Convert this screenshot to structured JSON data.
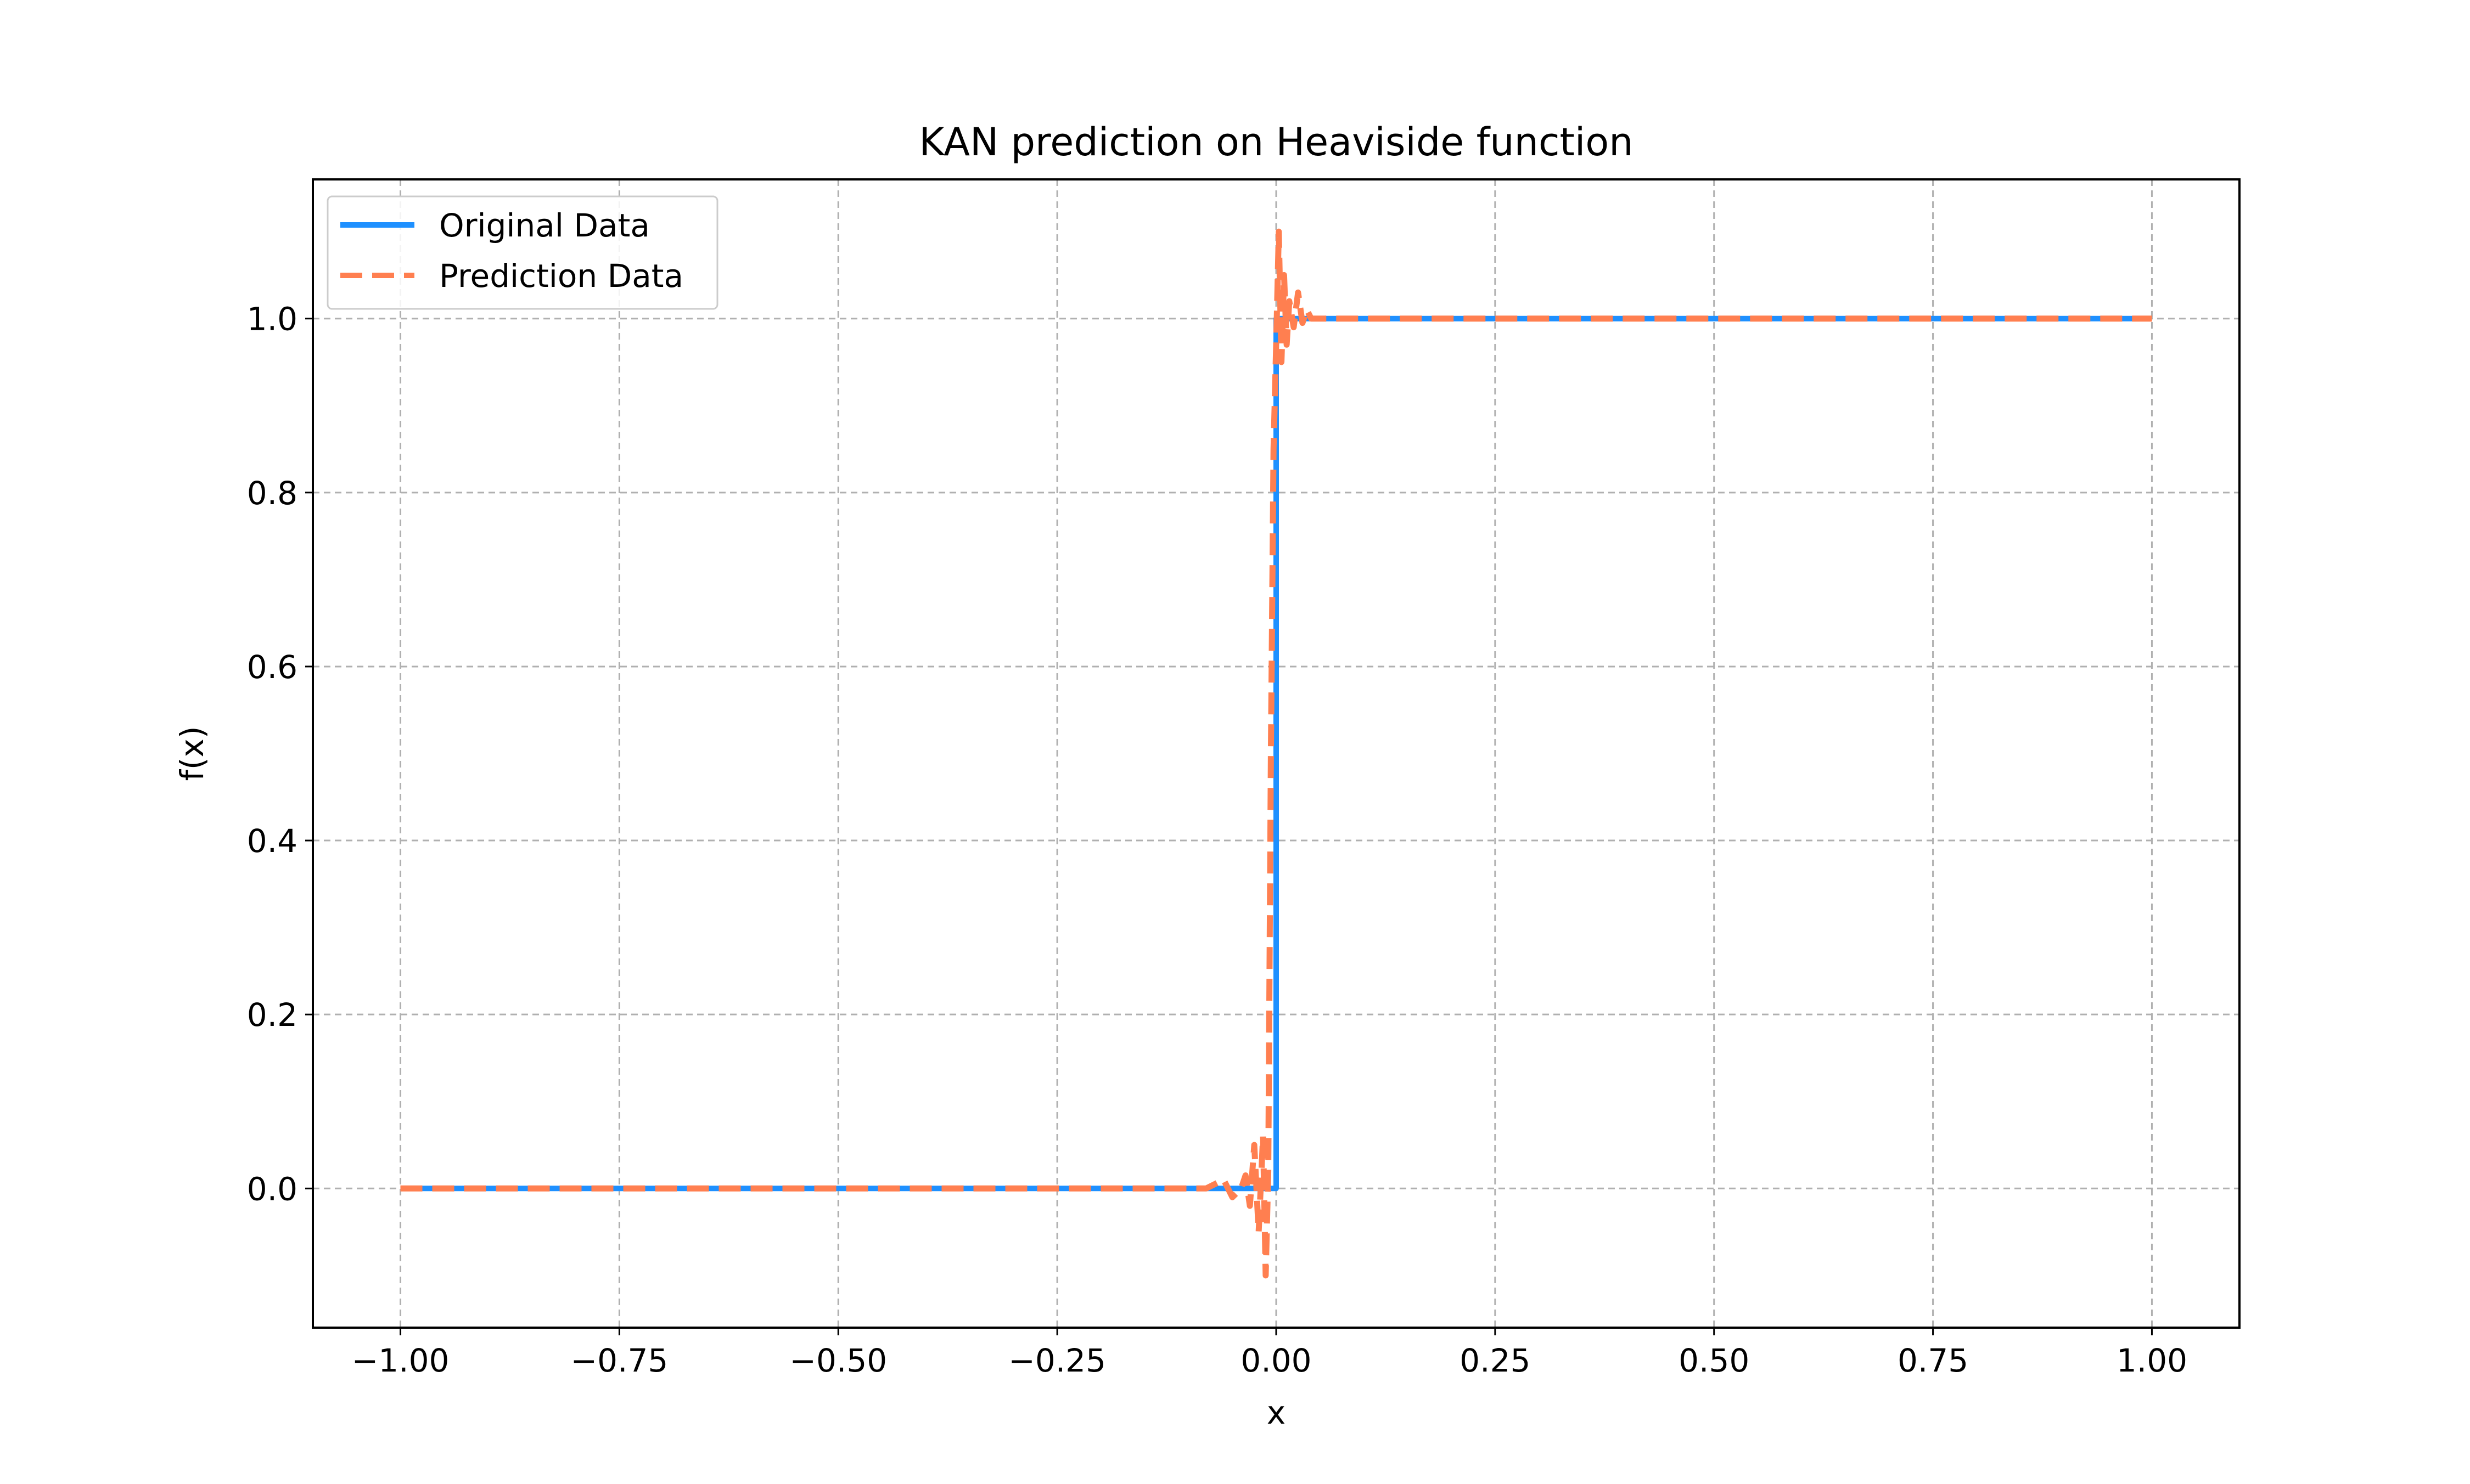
{
  "chart_data": {
    "type": "line",
    "title": "KAN prediction on Heaviside function",
    "xlabel": "x",
    "ylabel": "f(x)",
    "xlim": [
      -1.1,
      1.1
    ],
    "ylim": [
      -0.16,
      1.16
    ],
    "xticks": [
      -1.0,
      -0.75,
      -0.5,
      -0.25,
      0.0,
      0.25,
      0.5,
      0.75,
      1.0
    ],
    "xtick_labels": [
      "−1.00",
      "−0.75",
      "−0.50",
      "−0.25",
      "0.00",
      "0.25",
      "0.50",
      "0.75",
      "1.00"
    ],
    "yticks": [
      0.0,
      0.2,
      0.4,
      0.6,
      0.8,
      1.0
    ],
    "ytick_labels": [
      "0.0",
      "0.2",
      "0.4",
      "0.6",
      "0.8",
      "1.0"
    ],
    "grid": true,
    "legend_position": "upper-left",
    "series": [
      {
        "name": "Original Data",
        "style": "solid",
        "color": "#1e90ff",
        "x": [
          -1.0,
          0.0,
          0.0,
          1.0
        ],
        "y": [
          0.0,
          0.0,
          1.0,
          1.0
        ]
      },
      {
        "name": "Prediction Data",
        "style": "dashed",
        "color": "#ff7f50",
        "x": [
          -1.0,
          -0.08,
          -0.06,
          -0.05,
          -0.04,
          -0.035,
          -0.03,
          -0.025,
          -0.02,
          -0.015,
          -0.012,
          -0.009,
          -0.006,
          -0.003,
          0.0,
          0.003,
          0.006,
          0.009,
          0.012,
          0.015,
          0.02,
          0.025,
          0.03,
          0.035,
          0.04,
          0.05,
          0.06,
          0.08,
          1.0
        ],
        "y": [
          0.0,
          0.0,
          0.01,
          -0.01,
          0.0,
          0.015,
          -0.02,
          0.05,
          -0.05,
          0.06,
          -0.1,
          0.02,
          0.5,
          0.85,
          0.97,
          1.1,
          0.95,
          1.05,
          0.97,
          1.02,
          0.99,
          1.03,
          0.995,
          1.01,
          1.0,
          1.0,
          1.0,
          1.0,
          1.0
        ]
      }
    ]
  }
}
